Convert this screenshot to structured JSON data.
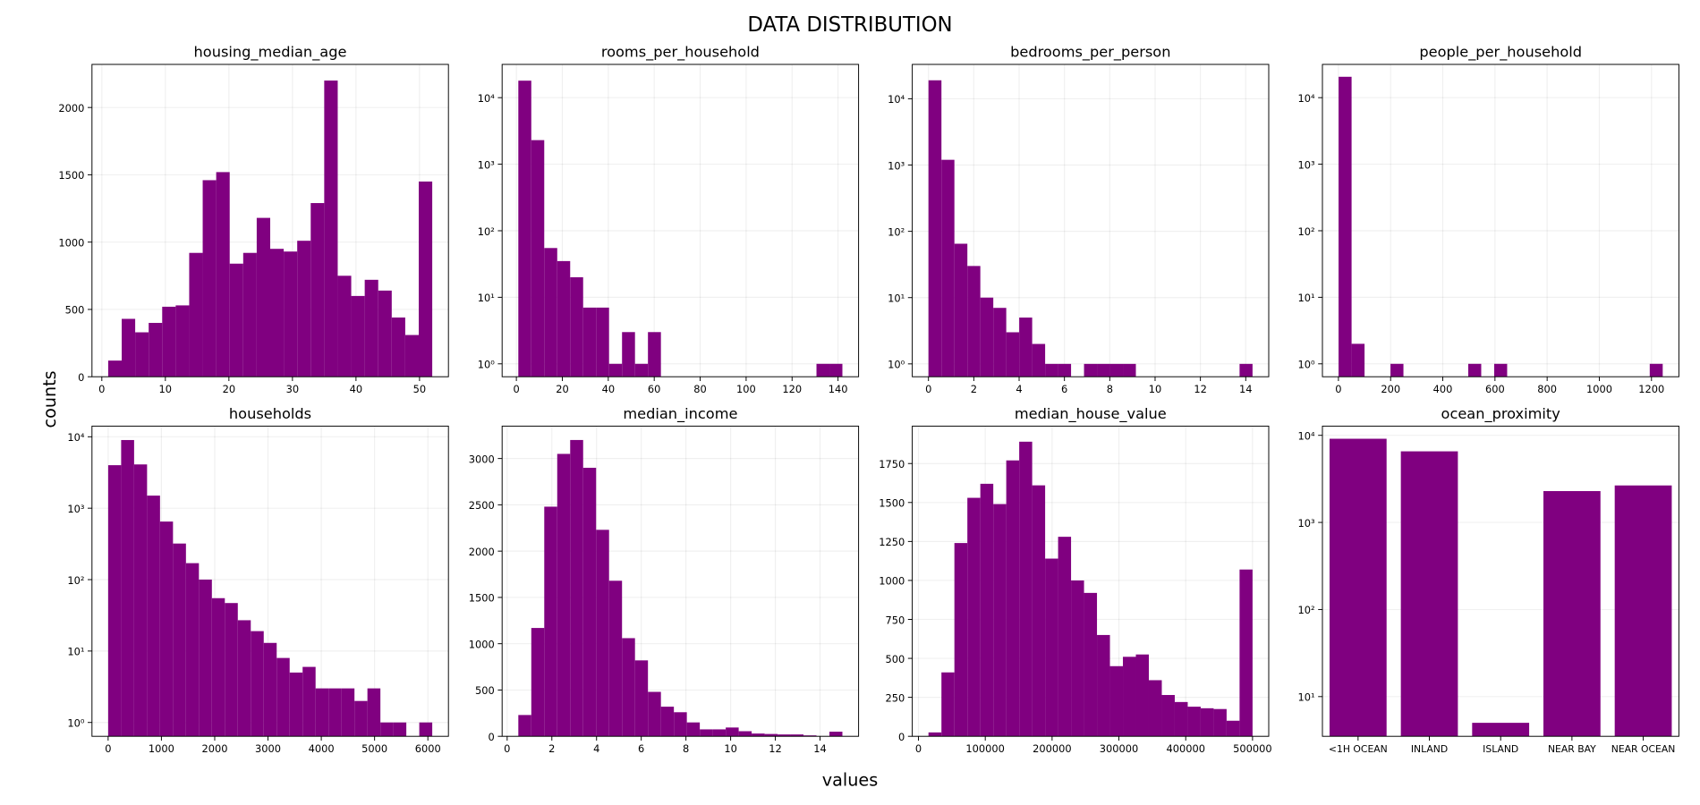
{
  "title": "DATA DISTRIBUTION",
  "x_label": "values",
  "y_label": "counts",
  "chart_data": [
    {
      "type": "histogram",
      "title": "housing_median_age",
      "color": "#800080",
      "grid": true,
      "log_y": false,
      "bins": [
        1,
        3.125,
        5.25,
        7.375,
        9.5,
        11.625,
        13.75,
        15.875,
        18,
        20.125,
        22.25,
        24.375,
        26.5,
        28.625,
        30.75,
        32.875,
        35,
        37.125,
        39.25,
        41.375,
        43.5,
        45.625,
        47.75,
        49.875,
        52
      ],
      "values": [
        120,
        430,
        330,
        400,
        520,
        530,
        920,
        1460,
        1520,
        840,
        920,
        1180,
        950,
        930,
        1010,
        1290,
        2200,
        750,
        600,
        720,
        640,
        440,
        310,
        1450
      ],
      "xlim": [
        -1.55,
        54.55
      ],
      "xticks": [
        0,
        10,
        20,
        30,
        40,
        50
      ],
      "ylim": [
        0,
        2320
      ],
      "yticks": [
        0,
        500,
        1000,
        1500,
        2000
      ]
    },
    {
      "type": "histogram",
      "title": "rooms_per_household",
      "color": "#800080",
      "grid": true,
      "log_y": true,
      "bins": [
        0.85,
        6.49,
        12.13,
        17.78,
        23.42,
        29.06,
        34.7,
        40.34,
        45.99,
        51.63,
        57.27,
        62.91,
        68.55,
        74.2,
        79.84,
        85.48,
        91.12,
        96.76,
        102.41,
        108.05,
        113.69,
        119.33,
        124.97,
        130.62,
        136.26,
        141.9
      ],
      "values": [
        18000,
        2300,
        55,
        35,
        20,
        7,
        7,
        1,
        3,
        1,
        3,
        0,
        0,
        0,
        0,
        0,
        0,
        0,
        0,
        0,
        0,
        0,
        0,
        1,
        1
      ],
      "xlim": [
        -6.2,
        148.95
      ],
      "xticks": [
        0,
        20,
        40,
        60,
        80,
        100,
        120,
        140
      ],
      "ylim": [
        0.64,
        31600
      ],
      "yticks": [
        {
          "value": 1,
          "label": "10⁰"
        },
        {
          "value": 10,
          "label": "10¹"
        },
        {
          "value": 100,
          "label": "10²"
        },
        {
          "value": 1000,
          "label": "10³"
        },
        {
          "value": 10000,
          "label": "10⁴"
        }
      ]
    },
    {
      "type": "histogram",
      "title": "bedrooms_per_person",
      "color": "#800080",
      "grid": true,
      "log_y": true,
      "bins": [
        0,
        0.572,
        1.144,
        1.716,
        2.288,
        2.86,
        3.432,
        4.004,
        4.576,
        5.148,
        5.72,
        6.292,
        6.864,
        7.436,
        8.008,
        8.58,
        9.152,
        9.724,
        10.296,
        10.868,
        11.44,
        12.012,
        12.584,
        13.156,
        13.728,
        14.3
      ],
      "values": [
        19000,
        1200,
        65,
        30,
        10,
        7,
        3,
        5,
        2,
        1,
        1,
        0,
        1,
        1,
        1,
        1,
        0,
        0,
        0,
        0,
        0,
        0,
        0,
        0,
        1
      ],
      "xlim": [
        -0.715,
        15.015
      ],
      "xticks": [
        0,
        2,
        4,
        6,
        8,
        10,
        12,
        14
      ],
      "ylim": [
        0.64,
        33000
      ],
      "yticks": [
        {
          "value": 1,
          "label": "10⁰"
        },
        {
          "value": 10,
          "label": "10¹"
        },
        {
          "value": 100,
          "label": "10²"
        },
        {
          "value": 1000,
          "label": "10³"
        },
        {
          "value": 10000,
          "label": "10⁴"
        }
      ]
    },
    {
      "type": "histogram",
      "title": "people_per_household",
      "color": "#800080",
      "grid": true,
      "log_y": true,
      "bins": [
        0.7,
        50.39,
        100.08,
        149.78,
        199.47,
        249.16,
        298.85,
        348.54,
        398.24,
        447.93,
        497.62,
        547.31,
        597.0,
        646.7,
        696.39,
        746.08,
        795.77,
        845.46,
        895.16,
        944.85,
        994.54,
        1044.23,
        1093.92,
        1143.62,
        1193.31,
        1243
      ],
      "values": [
        20600,
        2,
        0,
        0,
        1,
        0,
        0,
        0,
        0,
        0,
        1,
        0,
        1,
        0,
        0,
        0,
        0,
        0,
        0,
        0,
        0,
        0,
        0,
        0,
        1
      ],
      "xlim": [
        -61.4,
        1305
      ],
      "xticks": [
        0,
        200,
        400,
        600,
        800,
        1000,
        1200
      ],
      "ylim": [
        0.64,
        31600
      ],
      "yticks": [
        {
          "value": 1,
          "label": "10⁰"
        },
        {
          "value": 10,
          "label": "10¹"
        },
        {
          "value": 100,
          "label": "10²"
        },
        {
          "value": 1000,
          "label": "10³"
        },
        {
          "value": 10000,
          "label": "10⁴"
        }
      ]
    },
    {
      "type": "histogram",
      "title": "households",
      "color": "#800080",
      "grid": true,
      "log_y": true,
      "bins": [
        1,
        244.24,
        487.48,
        730.72,
        973.96,
        1217.2,
        1460.44,
        1703.68,
        1946.92,
        2190.16,
        2433.4,
        2676.64,
        2919.88,
        3163.12,
        3406.36,
        3649.6,
        3892.84,
        4136.08,
        4379.32,
        4622.56,
        4865.8,
        5109.04,
        5352.28,
        5595.52,
        5838.76,
        6082
      ],
      "values": [
        4000,
        9000,
        4100,
        1500,
        650,
        320,
        170,
        100,
        55,
        47,
        27,
        19,
        13,
        8,
        5,
        6,
        3,
        3,
        3,
        2,
        3,
        1,
        1,
        0,
        1
      ],
      "xlim": [
        -303,
        6386
      ],
      "xticks": [
        0,
        1000,
        2000,
        3000,
        4000,
        5000,
        6000
      ],
      "ylim": [
        0.64,
        14100
      ],
      "yticks": [
        {
          "value": 1,
          "label": "10⁰"
        },
        {
          "value": 10,
          "label": "10¹"
        },
        {
          "value": 100,
          "label": "10²"
        },
        {
          "value": 1000,
          "label": "10³"
        },
        {
          "value": 10000,
          "label": "10⁴"
        }
      ]
    },
    {
      "type": "histogram",
      "title": "median_income",
      "color": "#800080",
      "grid": true,
      "log_y": false,
      "bins": [
        0.5,
        1.08,
        1.66,
        2.24,
        2.82,
        3.4,
        3.98,
        4.56,
        5.14,
        5.72,
        6.3,
        6.88,
        7.46,
        8.04,
        8.62,
        9.2,
        9.78,
        10.36,
        10.94,
        11.52,
        12.1,
        12.68,
        13.26,
        13.84,
        14.42,
        15.0
      ],
      "values": [
        230,
        1170,
        2480,
        3050,
        3200,
        2900,
        2230,
        1680,
        1060,
        820,
        480,
        320,
        260,
        150,
        75,
        75,
        95,
        55,
        30,
        25,
        20,
        20,
        10,
        0,
        50
      ],
      "xlim": [
        -0.225,
        15.725
      ],
      "xticks": [
        0,
        2,
        4,
        6,
        8,
        10,
        12,
        14
      ],
      "ylim": [
        0,
        3350
      ],
      "yticks": [
        0,
        500,
        1000,
        1500,
        2000,
        2500,
        3000
      ]
    },
    {
      "type": "histogram",
      "title": "median_house_value",
      "color": "#800080",
      "grid": true,
      "log_y": false,
      "bins": [
        15000,
        34400,
        53800,
        73200,
        92600,
        112000,
        131400,
        150800,
        170200,
        189600,
        209000,
        228400,
        247800,
        267200,
        286600,
        306000,
        325400,
        344800,
        364200,
        383600,
        403000,
        422400,
        441800,
        461200,
        480600,
        500000
      ],
      "values": [
        25,
        410,
        1240,
        1530,
        1620,
        1490,
        1770,
        1890,
        1610,
        1140,
        1280,
        1000,
        920,
        650,
        450,
        510,
        525,
        360,
        265,
        220,
        190,
        180,
        175,
        100,
        1070
      ],
      "xlim": [
        -9250,
        524250
      ],
      "xticks": [
        0,
        100000,
        200000,
        300000,
        400000,
        500000
      ],
      "ylim": [
        0,
        1990
      ],
      "yticks": [
        0,
        250,
        500,
        750,
        1000,
        1250,
        1500,
        1750
      ]
    },
    {
      "type": "bar",
      "title": "ocean_proximity",
      "color": "#800080",
      "grid": true,
      "log_y": true,
      "categories": [
        "<1H OCEAN",
        "INLAND",
        "ISLAND",
        "NEAR BAY",
        "NEAR OCEAN"
      ],
      "values": [
        9136,
        6551,
        5,
        2290,
        2658
      ],
      "ylim": [
        3.5,
        12760
      ],
      "yticks": [
        {
          "value": 10,
          "label": "10¹"
        },
        {
          "value": 100,
          "label": "10²"
        },
        {
          "value": 1000,
          "label": "10³"
        },
        {
          "value": 10000,
          "label": "10⁴"
        }
      ]
    }
  ]
}
